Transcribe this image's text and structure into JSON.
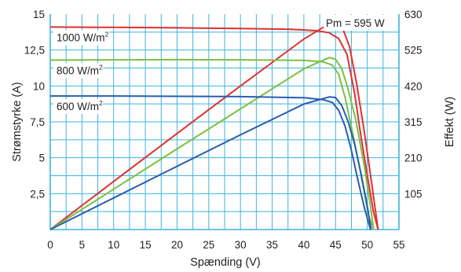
{
  "chart_data": {
    "type": "line",
    "title": "",
    "xlabel": "Spænding (V)",
    "ylabel_left": "Strømstyrke (A)",
    "ylabel_right": "Effekt (W)",
    "xlim": [
      0,
      55
    ],
    "ylim_left": [
      0,
      15
    ],
    "ylim_right": [
      0,
      630
    ],
    "x_ticks": [
      "0",
      "5",
      "10",
      "15",
      "20",
      "25",
      "30",
      "35",
      "40",
      "45",
      "50",
      "55"
    ],
    "y_left_ticks": [
      "2,5",
      "5",
      "7,5",
      "10",
      "12,5",
      "15"
    ],
    "y_right_ticks": [
      "105",
      "210",
      "315",
      "420",
      "525",
      "630"
    ],
    "grid": true,
    "annotation": "Pm = 595 W",
    "curve_labels": [
      {
        "series": "1000",
        "base": "1000 W/m",
        "sup": "2"
      },
      {
        "series": "800",
        "base": "800 W/m",
        "sup": "2"
      },
      {
        "series": "600",
        "base": "600 W/m",
        "sup": "2"
      }
    ],
    "series": [
      {
        "key": "1000",
        "color": "#e03030",
        "current_A": [
          [
            0,
            14.1
          ],
          [
            10,
            14.08
          ],
          [
            20,
            14.05
          ],
          [
            30,
            14.0
          ],
          [
            38,
            13.95
          ],
          [
            42,
            13.85
          ],
          [
            44,
            13.7
          ],
          [
            45.5,
            13.3
          ],
          [
            46.8,
            12.2
          ],
          [
            48,
            9.5
          ],
          [
            49,
            6.5
          ],
          [
            50,
            3.8
          ],
          [
            51,
            1.2
          ],
          [
            51.7,
            0
          ]
        ],
        "power_W": [
          [
            0,
            0
          ],
          [
            10,
            140.8
          ],
          [
            20,
            281
          ],
          [
            30,
            420
          ],
          [
            40,
            557
          ],
          [
            44,
            602
          ],
          [
            45.2,
            603
          ],
          [
            46.2,
            585
          ],
          [
            47.2,
            535
          ],
          [
            48.3,
            430
          ],
          [
            49.5,
            290
          ],
          [
            50.7,
            135
          ],
          [
            51.7,
            0
          ]
        ]
      },
      {
        "key": "800",
        "color": "#7ac143",
        "current_A": [
          [
            0,
            11.8
          ],
          [
            10,
            11.82
          ],
          [
            20,
            11.83
          ],
          [
            30,
            11.82
          ],
          [
            40,
            11.78
          ],
          [
            43,
            11.68
          ],
          [
            44.5,
            11.45
          ],
          [
            45.5,
            10.8
          ],
          [
            46.5,
            9.2
          ],
          [
            47.8,
            6.5
          ],
          [
            49,
            3.8
          ],
          [
            50.2,
            1.0
          ],
          [
            51,
            0
          ]
        ],
        "power_W": [
          [
            0,
            0
          ],
          [
            10,
            118
          ],
          [
            20,
            236
          ],
          [
            30,
            353
          ],
          [
            40,
            470
          ],
          [
            44,
            503
          ],
          [
            45,
            498
          ],
          [
            46,
            470
          ],
          [
            47,
            410
          ],
          [
            48.2,
            320
          ],
          [
            49.5,
            190
          ],
          [
            50.5,
            70
          ],
          [
            51,
            0
          ]
        ]
      },
      {
        "key": "600",
        "color": "#2a5db0",
        "current_A": [
          [
            0,
            9.3
          ],
          [
            10,
            9.3
          ],
          [
            20,
            9.28
          ],
          [
            30,
            9.26
          ],
          [
            40,
            9.18
          ],
          [
            43,
            9.05
          ],
          [
            44.5,
            8.85
          ],
          [
            45.5,
            8.3
          ],
          [
            46.5,
            7.2
          ],
          [
            47.5,
            5.5
          ],
          [
            48.5,
            3.5
          ],
          [
            49.5,
            1.6
          ],
          [
            50.5,
            0
          ]
        ],
        "power_W": [
          [
            0,
            0
          ],
          [
            10,
            92.5
          ],
          [
            20,
            185
          ],
          [
            30,
            277
          ],
          [
            40,
            367
          ],
          [
            44,
            388
          ],
          [
            45,
            386
          ],
          [
            46,
            362
          ],
          [
            47,
            315
          ],
          [
            48,
            250
          ],
          [
            49,
            165
          ],
          [
            50,
            70
          ],
          [
            50.6,
            0
          ]
        ]
      }
    ]
  }
}
